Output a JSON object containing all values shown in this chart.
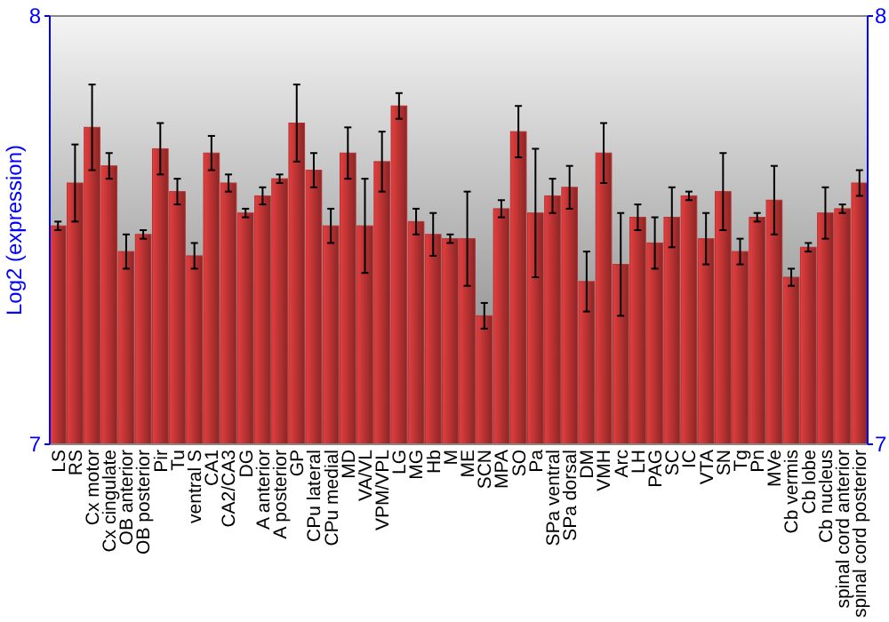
{
  "chart_data": {
    "type": "bar",
    "ylabel": "Log2 (expression)",
    "categories": [
      "LS",
      "RS",
      "Cx motor",
      "Cx cingulate",
      "OB anterior",
      "OB posterior",
      "Pir",
      "Tu",
      "ventral S",
      "CA1",
      "CA2/CA3",
      "DG",
      "A anterior",
      "A posterior",
      "GP",
      "CPu lateral",
      "CPu medial",
      "MD",
      "VA/VL",
      "VPM/VPL",
      "LG",
      "MG",
      "Hb",
      "M",
      "ME",
      "SCN",
      "MPA",
      "SO",
      "Pa",
      "SPa ventral",
      "SPa dorsal",
      "DM",
      "VMH",
      "Arc",
      "LH",
      "PAG",
      "SC",
      "IC",
      "VTA",
      "SN",
      "Tg",
      "Pn",
      "MVe",
      "Cb vermis",
      "Cb lobe",
      "Cb nucleus",
      "spinal cord anterior",
      "spinal cord posterior"
    ],
    "values": [
      7.51,
      7.61,
      7.74,
      7.65,
      7.45,
      7.49,
      7.69,
      7.59,
      7.44,
      7.68,
      7.61,
      7.54,
      7.58,
      7.62,
      7.75,
      7.64,
      7.51,
      7.68,
      7.51,
      7.66,
      7.79,
      7.52,
      7.49,
      7.48,
      7.48,
      7.3,
      7.55,
      7.73,
      7.54,
      7.58,
      7.6,
      7.38,
      7.68,
      7.42,
      7.53,
      7.47,
      7.53,
      7.58,
      7.48,
      7.59,
      7.45,
      7.53,
      7.57,
      7.39,
      7.46,
      7.54,
      7.55,
      7.61
    ],
    "errors": [
      0.01,
      0.09,
      0.1,
      0.03,
      0.04,
      0.01,
      0.06,
      0.03,
      0.03,
      0.04,
      0.02,
      0.01,
      0.02,
      0.01,
      0.09,
      0.04,
      0.04,
      0.06,
      0.11,
      0.07,
      0.03,
      0.03,
      0.05,
      0.01,
      0.11,
      0.03,
      0.02,
      0.06,
      0.15,
      0.04,
      0.05,
      0.07,
      0.07,
      0.12,
      0.03,
      0.06,
      0.07,
      0.01,
      0.06,
      0.09,
      0.03,
      0.01,
      0.08,
      0.02,
      0.01,
      0.06,
      0.01,
      0.03
    ],
    "color": "#b83232",
    "ylim": [
      7,
      8
    ],
    "yticks": [
      7,
      8
    ],
    "y2lim": [
      7,
      8
    ],
    "y2ticks": [
      7,
      8
    ]
  }
}
